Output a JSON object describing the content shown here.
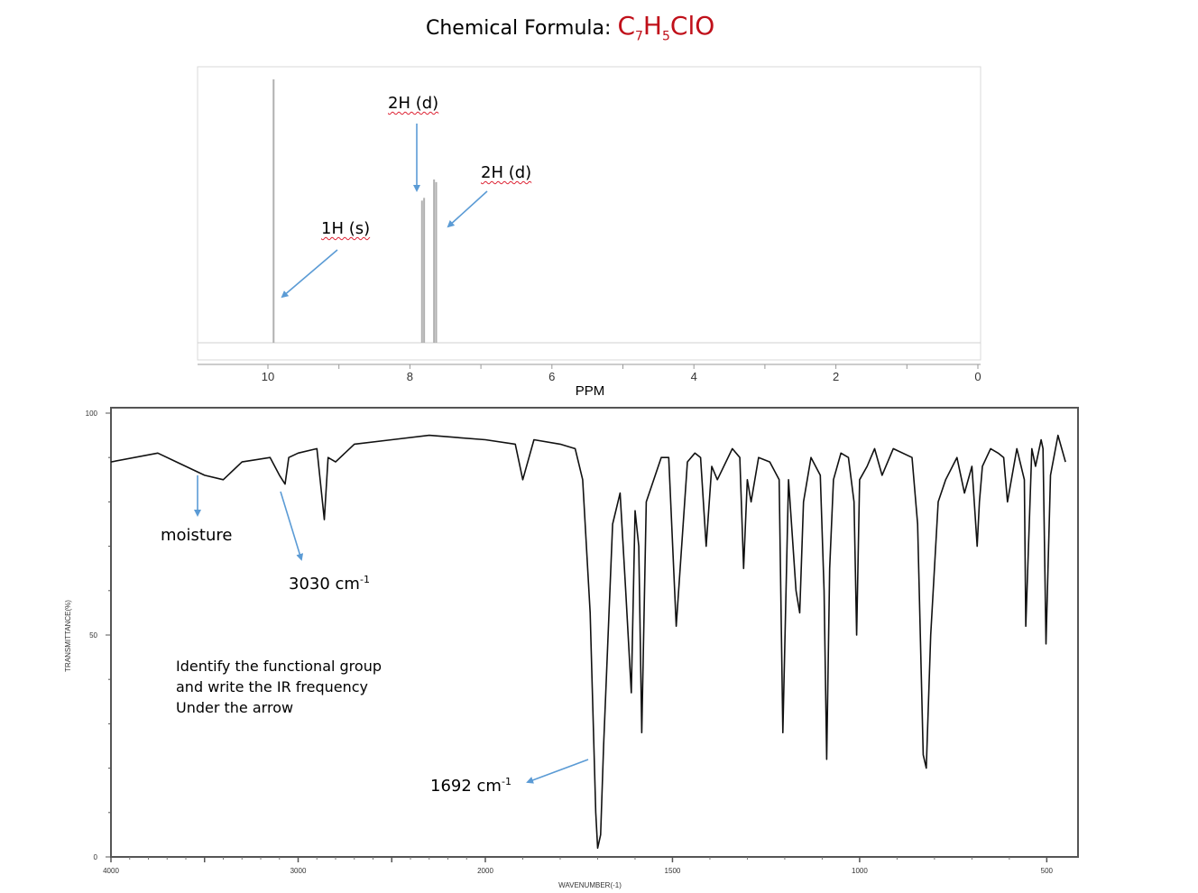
{
  "title": {
    "prefix": "Chemical Formula: ",
    "c": "C",
    "c_sub": "7",
    "h": "H",
    "h_sub": "5",
    "rest": "ClO"
  },
  "colors": {
    "formula": "#c0101a",
    "arrow": "#5b9bd5",
    "nmr_trace": "#b0b0b0",
    "ir_trace": "#111111"
  },
  "chart_data": [
    {
      "type": "line",
      "xlabel": "PPM",
      "xlim": [
        0,
        11
      ],
      "x_reversed": true,
      "x_ticks": [
        "10",
        "8",
        "6",
        "4",
        "2",
        "0"
      ],
      "peaks": [
        {
          "ppm": 9.92,
          "height": 1.0,
          "label": "1H (s)"
        },
        {
          "ppm": 7.83,
          "height": 0.54,
          "label": "2H (d)"
        },
        {
          "ppm": 7.8,
          "height": 0.55
        },
        {
          "ppm": 7.66,
          "height": 0.62,
          "label": "2H (d)"
        },
        {
          "ppm": 7.63,
          "height": 0.61
        }
      ]
    },
    {
      "type": "line",
      "xlabel": "WAVENUMBER(-1)",
      "ylabel": "TRANSMITTANCE(%)",
      "xlim": [
        4000,
        450
      ],
      "ylim": [
        0,
        100
      ],
      "x_ticks": [
        "4000",
        "3000",
        "2000",
        "1500",
        "1000",
        "500"
      ],
      "y_ticks": [
        "100",
        "50",
        "0"
      ],
      "x": [
        4000,
        3750,
        3650,
        3500,
        3400,
        3300,
        3150,
        3100,
        3070,
        3050,
        3000,
        2900,
        2860,
        2840,
        2800,
        2700,
        2500,
        2300,
        2000,
        1920,
        1900,
        1870,
        1800,
        1760,
        1740,
        1720,
        1705,
        1700,
        1692,
        1684,
        1660,
        1640,
        1625,
        1610,
        1600,
        1590,
        1582,
        1570,
        1530,
        1510,
        1490,
        1460,
        1440,
        1425,
        1410,
        1395,
        1380,
        1340,
        1320,
        1310,
        1300,
        1290,
        1270,
        1240,
        1215,
        1205,
        1190,
        1170,
        1160,
        1150,
        1130,
        1105,
        1095,
        1088,
        1080,
        1070,
        1050,
        1030,
        1015,
        1008,
        1000,
        980,
        960,
        940,
        910,
        860,
        845,
        830,
        822,
        810,
        790,
        770,
        740,
        720,
        700,
        686,
        680,
        672,
        650,
        630,
        615,
        605,
        580,
        560,
        556,
        540,
        530,
        515,
        510,
        502,
        490,
        470,
        450
      ],
      "y": [
        89,
        91,
        89,
        86,
        85,
        89,
        90,
        86,
        84,
        90,
        91,
        92,
        76,
        90,
        89,
        93,
        94,
        95,
        94,
        93,
        85,
        94,
        93,
        92,
        85,
        55,
        10,
        2,
        5,
        25,
        75,
        82,
        60,
        37,
        78,
        70,
        28,
        80,
        90,
        90,
        52,
        89,
        91,
        90,
        70,
        88,
        85,
        92,
        90,
        65,
        85,
        80,
        90,
        89,
        85,
        28,
        85,
        60,
        55,
        80,
        90,
        86,
        60,
        22,
        65,
        85,
        91,
        90,
        80,
        50,
        85,
        88,
        92,
        86,
        92,
        90,
        75,
        23,
        20,
        50,
        80,
        85,
        90,
        82,
        88,
        70,
        80,
        88,
        92,
        91,
        90,
        80,
        92,
        85,
        52,
        92,
        88,
        94,
        92,
        48,
        86,
        95,
        89
      ]
    }
  ],
  "annotations": {
    "nmr_1h": "1H (s)",
    "nmr_2h_a": "2H (d)",
    "nmr_2h_b": "2H (d)",
    "moisture": "moisture",
    "ir_3030": "3030 cm",
    "ir_3030_sup": "-1",
    "ir_1692": "1692 cm",
    "ir_1692_sup": "-1",
    "instructions": [
      "Identify the functional group",
      "and write the IR frequency",
      "Under the arrow"
    ]
  }
}
